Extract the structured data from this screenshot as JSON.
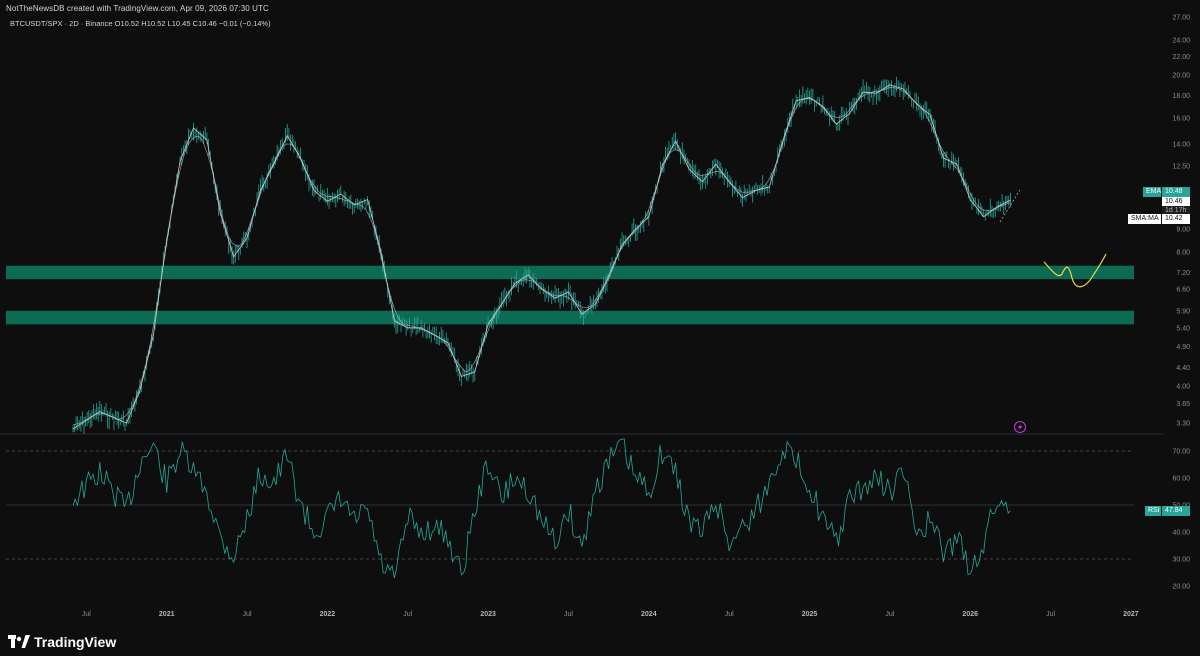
{
  "header": {
    "title": "NotTheNewsDB created with TradingView.com, Apr 09, 2026 07:30 UTC",
    "symbol": "BTCUSDT/SPX · 2D · Binance",
    "ohlc": "O10.52  H10.52  L10.45  C10.46  −0.01 (−0.14%)"
  },
  "footer": {
    "logo_text": "TradingView"
  },
  "colors": {
    "background": "#0e0e0e",
    "candle": "#26a69a",
    "zone": "#0d6b53",
    "ma_line": "#d1d4dc",
    "rsi_line": "#26a69a",
    "sketch": "#e8d84a",
    "axis_text": "#8a8d96"
  },
  "labels": {
    "ema": {
      "name": "EMA",
      "value": "10.48"
    },
    "price": {
      "value": "10.46",
      "countdown": "1d 17h"
    },
    "sma": {
      "name": "SMA:MA",
      "value": "10.42"
    },
    "rsi": {
      "name": "RSI",
      "value": "47.84"
    }
  },
  "chart_data": {
    "type": "line",
    "price_scale": "log",
    "price_ticks": [
      "27.00",
      "24.00",
      "22.00",
      "20.00",
      "18.00",
      "16.00",
      "14.00",
      "12.50",
      "11.00",
      "9.00",
      "8.00",
      "7.20",
      "6.60",
      "5.90",
      "5.40",
      "4.90",
      "4.40",
      "4.00",
      "3.65",
      "3.30"
    ],
    "rsi_ticks": [
      "70.00",
      "60.00",
      "50.00",
      "40.00",
      "30.00",
      "20.00"
    ],
    "rsi_levels": [
      70,
      50,
      30
    ],
    "x_ticks": [
      "Jul",
      "2021",
      "Jul",
      "2022",
      "Jul",
      "2023",
      "Jul",
      "2024",
      "Jul",
      "2025",
      "Jul",
      "2026",
      "Jul",
      "2027"
    ],
    "zones": [
      [
        6.95,
        7.45
      ],
      [
        5.5,
        5.9
      ]
    ],
    "series": [
      {
        "kind": "price",
        "x": [
          "2020-06",
          "2020-08",
          "2020-10",
          "2020-11",
          "2020-12",
          "2021-01",
          "2021-02",
          "2021-03",
          "2021-04",
          "2021-05",
          "2021-06",
          "2021-07",
          "2021-08",
          "2021-09",
          "2021-10",
          "2021-11",
          "2021-12",
          "2022-01",
          "2022-02",
          "2022-03",
          "2022-04",
          "2022-05",
          "2022-06",
          "2022-07",
          "2022-08",
          "2022-09",
          "2022-10",
          "2022-11",
          "2022-12",
          "2023-01",
          "2023-02",
          "2023-03",
          "2023-04",
          "2023-05",
          "2023-06",
          "2023-07",
          "2023-08",
          "2023-09",
          "2023-10",
          "2023-11",
          "2023-12",
          "2024-01",
          "2024-02",
          "2024-03",
          "2024-04",
          "2024-05",
          "2024-06",
          "2024-07",
          "2024-08",
          "2024-09",
          "2024-10",
          "2024-11",
          "2024-12",
          "2025-01",
          "2025-02",
          "2025-03",
          "2025-04",
          "2025-05",
          "2025-06",
          "2025-07",
          "2025-08",
          "2025-09",
          "2025-10",
          "2025-11",
          "2025-12",
          "2026-01",
          "2026-02",
          "2026-03",
          "2026-04"
        ],
        "values": [
          3.2,
          3.5,
          3.3,
          3.9,
          5.2,
          8.5,
          12.8,
          15.2,
          14.3,
          9.8,
          7.8,
          8.6,
          11.0,
          12.6,
          14.6,
          13.0,
          11.0,
          10.4,
          10.8,
          10.2,
          10.5,
          8.0,
          5.6,
          5.4,
          5.4,
          5.2,
          5.0,
          4.2,
          4.3,
          5.5,
          6.1,
          6.8,
          7.1,
          6.6,
          6.3,
          6.5,
          5.8,
          6.1,
          7.0,
          8.3,
          9.0,
          9.6,
          12.5,
          14.2,
          12.3,
          11.5,
          12.6,
          11.5,
          10.6,
          11.0,
          11.2,
          14.2,
          17.5,
          17.8,
          17.0,
          15.5,
          16.4,
          18.3,
          18.2,
          19.0,
          18.6,
          17.2,
          16.3,
          13.0,
          12.6,
          10.5,
          9.6,
          10.1,
          10.46
        ]
      }
    ],
    "rsi_series": {
      "x": [
        "2020-06",
        "2020-08",
        "2020-10",
        "2020-11",
        "2020-12",
        "2021-01",
        "2021-02",
        "2021-03",
        "2021-04",
        "2021-05",
        "2021-06",
        "2021-07",
        "2021-08",
        "2021-09",
        "2021-10",
        "2021-11",
        "2021-12",
        "2022-01",
        "2022-02",
        "2022-03",
        "2022-04",
        "2022-05",
        "2022-06",
        "2022-07",
        "2022-08",
        "2022-09",
        "2022-10",
        "2022-11",
        "2022-12",
        "2023-01",
        "2023-02",
        "2023-03",
        "2023-04",
        "2023-05",
        "2023-06",
        "2023-07",
        "2023-08",
        "2023-09",
        "2023-10",
        "2023-11",
        "2023-12",
        "2024-01",
        "2024-02",
        "2024-03",
        "2024-04",
        "2024-05",
        "2024-06",
        "2024-07",
        "2024-08",
        "2024-09",
        "2024-10",
        "2024-11",
        "2024-12",
        "2025-01",
        "2025-02",
        "2025-03",
        "2025-04",
        "2025-05",
        "2025-06",
        "2025-07",
        "2025-08",
        "2025-09",
        "2025-10",
        "2025-11",
        "2025-12",
        "2026-01",
        "2026-02",
        "2026-03",
        "2026-04"
      ],
      "values": [
        52,
        62,
        48,
        66,
        72,
        58,
        70,
        62,
        55,
        38,
        31,
        45,
        62,
        58,
        68,
        50,
        40,
        45,
        52,
        44,
        48,
        28,
        22,
        45,
        40,
        42,
        38,
        24,
        48,
        66,
        52,
        60,
        56,
        44,
        36,
        48,
        34,
        56,
        66,
        72,
        60,
        55,
        70,
        62,
        44,
        40,
        52,
        36,
        42,
        48,
        58,
        72,
        66,
        58,
        44,
        36,
        52,
        56,
        60,
        55,
        62,
        40,
        44,
        32,
        38,
        26,
        36,
        52,
        47.84
      ]
    }
  }
}
